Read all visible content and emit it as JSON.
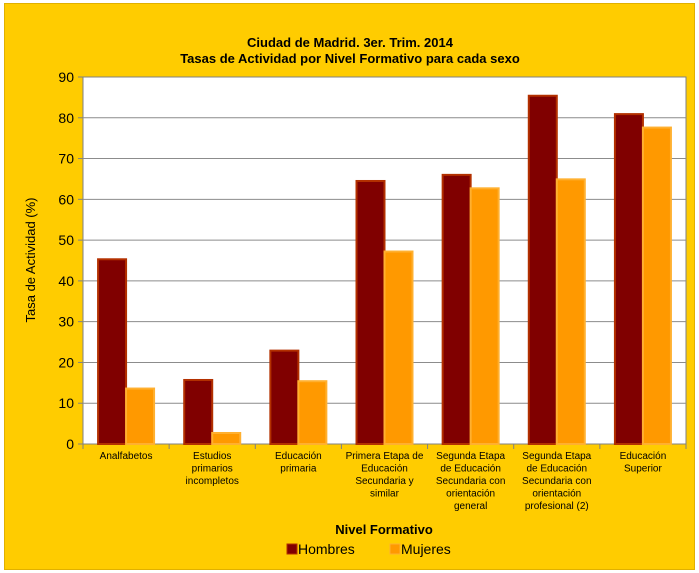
{
  "chart_data": {
    "type": "bar",
    "title": "Ciudad de Madrid. 3er. Trim. 2014",
    "subtitle": "Tasas de Actividad por Nivel Formativo para cada sexo",
    "xlabel": "Nivel Formativo",
    "ylabel": "Tasa de Actividad (%)",
    "ylim": [
      0,
      90
    ],
    "yticks": [
      0,
      10,
      20,
      30,
      40,
      50,
      60,
      70,
      80,
      90
    ],
    "grid": true,
    "legend": "bottom",
    "categories": [
      [
        "Analfabetos"
      ],
      [
        "Estudios",
        "primarios",
        "incompletos"
      ],
      [
        "Educación",
        "primaria"
      ],
      [
        "Primera Etapa de",
        "Educación",
        "Secundaria y",
        "similar"
      ],
      [
        "Segunda Etapa",
        "de Educación",
        "Secundaria con",
        "orientación",
        "general"
      ],
      [
        "Segunda Etapa",
        "de Educación",
        "Secundaria con",
        "orientación",
        "profesional (2)"
      ],
      [
        "Educación",
        "Superior"
      ]
    ],
    "series": [
      {
        "name": "Hombres",
        "color": "#800000",
        "values": [
          45.3,
          15.7,
          22.9,
          64.5,
          66.0,
          85.4,
          80.9
        ]
      },
      {
        "name": "Mujeres",
        "color": "#ff9900",
        "values": [
          13.6,
          2.7,
          15.4,
          47.2,
          62.7,
          64.9,
          77.6
        ]
      }
    ]
  }
}
